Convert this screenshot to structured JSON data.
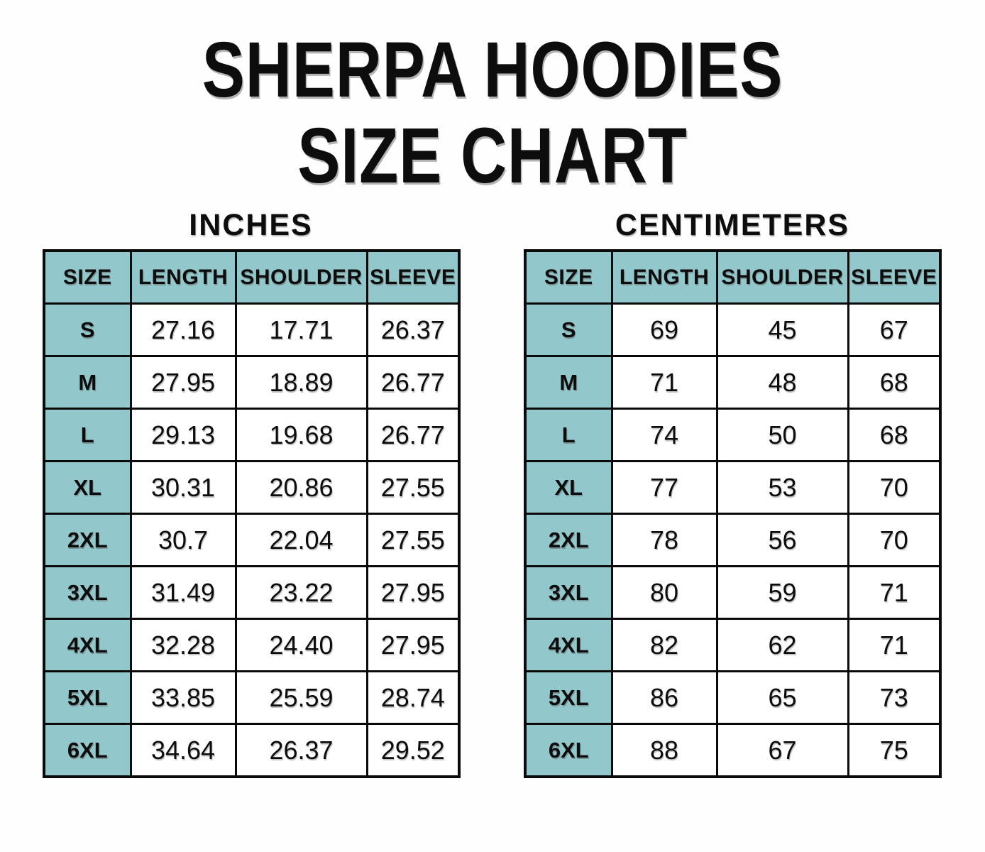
{
  "page_title": {
    "line1": "SHERPA HOODIES",
    "line2": "SIZE CHART"
  },
  "colors": {
    "header_fill": "#92c8cb",
    "border": "#0a0a0a",
    "background": "#fefefe",
    "text": "#0d0d0d"
  },
  "chart_data": [
    {
      "type": "table",
      "title": "INCHES",
      "columns": [
        "SIZE",
        "LENGTH",
        "SHOULDER",
        "SLEEVE"
      ],
      "rows": [
        [
          "S",
          "27.16",
          "17.71",
          "26.37"
        ],
        [
          "M",
          "27.95",
          "18.89",
          "26.77"
        ],
        [
          "L",
          "29.13",
          "19.68",
          "26.77"
        ],
        [
          "XL",
          "30.31",
          "20.86",
          "27.55"
        ],
        [
          "2XL",
          "30.7",
          "22.04",
          "27.55"
        ],
        [
          "3XL",
          "31.49",
          "23.22",
          "27.95"
        ],
        [
          "4XL",
          "32.28",
          "24.40",
          "27.95"
        ],
        [
          "5XL",
          "33.85",
          "25.59",
          "28.74"
        ],
        [
          "6XL",
          "34.64",
          "26.37",
          "29.52"
        ]
      ]
    },
    {
      "type": "table",
      "title": "CENTIMETERS",
      "columns": [
        "SIZE",
        "LENGTH",
        "SHOULDER",
        "SLEEVE"
      ],
      "rows": [
        [
          "S",
          "69",
          "45",
          "67"
        ],
        [
          "M",
          "71",
          "48",
          "68"
        ],
        [
          "L",
          "74",
          "50",
          "68"
        ],
        [
          "XL",
          "77",
          "53",
          "70"
        ],
        [
          "2XL",
          "78",
          "56",
          "70"
        ],
        [
          "3XL",
          "80",
          "59",
          "71"
        ],
        [
          "4XL",
          "82",
          "62",
          "71"
        ],
        [
          "5XL",
          "86",
          "65",
          "73"
        ],
        [
          "6XL",
          "88",
          "67",
          "75"
        ]
      ]
    }
  ]
}
